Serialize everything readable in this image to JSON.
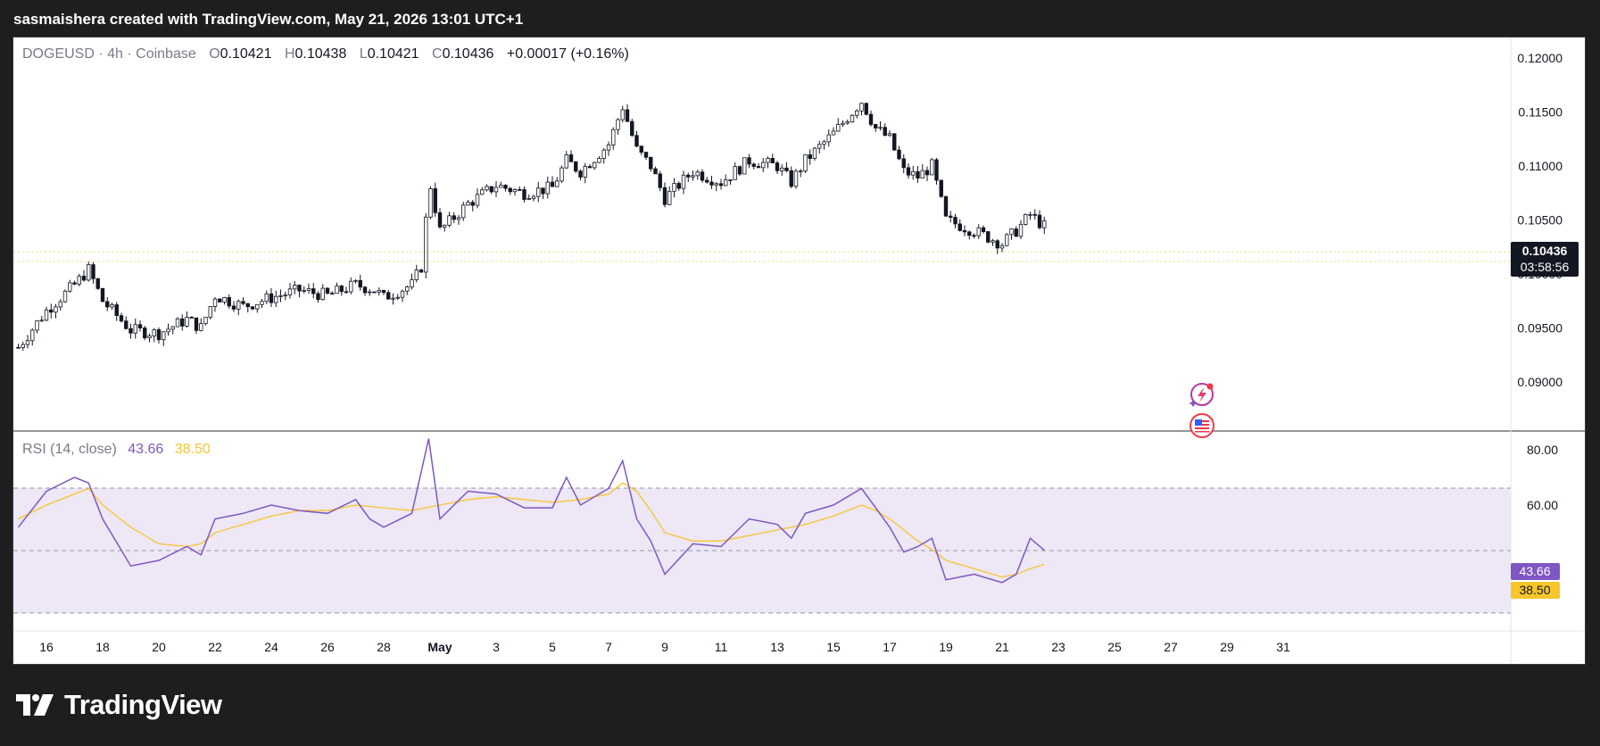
{
  "header": {
    "caption": "sasmaishera created with TradingView.com, May 21, 2026 13:01 UTC+1"
  },
  "legend": {
    "symbol": "DOGEUSD · 4h · Coinbase",
    "o_label": "O",
    "o": "0.10421",
    "h_label": "H",
    "h": "0.10438",
    "l_label": "L",
    "l": "0.10421",
    "c_label": "C",
    "c": "0.10436",
    "change": "+0.00017 (+0.16%)"
  },
  "price_badge": {
    "price": "0.10436",
    "countdown": "03:58:56"
  },
  "rsi_legend": {
    "label": "RSI (14, close)",
    "rsi": "43.66",
    "ma": "38.50"
  },
  "rsi_badges": {
    "rsi": "43.66",
    "ma": "38.50"
  },
  "footer": {
    "brand": "TradingView"
  },
  "colors": {
    "candle": "#131722",
    "rsi_line": "#7e57c2",
    "rsi_ma": "#f7c62d",
    "rsi_band": "#ede7f6",
    "price_line": "#f0d96a",
    "background": "#ffffff",
    "frame": "#1e1e1e"
  },
  "icons": [
    "lightning-event-icon",
    "us-flag-event-icon",
    "tradingview-logo-icon"
  ],
  "chart_data": [
    {
      "type": "candlestick",
      "symbol": "DOGEUSD",
      "interval": "4h",
      "exchange": "Coinbase",
      "y_ticks": [
        "0.12000",
        "0.11500",
        "0.11000",
        "0.10500",
        "0.10000",
        "0.09500",
        "0.09000"
      ],
      "ylim": [
        0.09,
        0.12
      ],
      "x_ticks": [
        "16",
        "18",
        "20",
        "22",
        "24",
        "26",
        "28",
        "May",
        "3",
        "5",
        "7",
        "9",
        "11",
        "13",
        "15",
        "17",
        "19",
        "21",
        "23",
        "25",
        "27",
        "29",
        "31"
      ],
      "last_price": 0.10436,
      "close_path": [
        [
          "Apr 15",
          0.0932
        ],
        [
          "Apr 16",
          0.0966
        ],
        [
          "Apr 17",
          0.099
        ],
        [
          "Apr 17.5",
          0.1004
        ],
        [
          "Apr 18",
          0.0975
        ],
        [
          "Apr 19",
          0.0948
        ],
        [
          "Apr 20",
          0.0945
        ],
        [
          "Apr 21",
          0.0958
        ],
        [
          "Apr 21.5",
          0.095
        ],
        [
          "Apr 22",
          0.098
        ],
        [
          "Apr 23",
          0.097
        ],
        [
          "Apr 24",
          0.0978
        ],
        [
          "Apr 25",
          0.0985
        ],
        [
          "Apr 26",
          0.098
        ],
        [
          "Apr 27",
          0.099
        ],
        [
          "Apr 27.7",
          0.0985
        ],
        [
          "Apr 28",
          0.0978
        ],
        [
          "Apr 29",
          0.099
        ],
        [
          "Apr 29.4",
          0.101
        ],
        [
          "Apr 29.6",
          0.109
        ],
        [
          "Apr 30",
          0.104
        ],
        [
          "May 1",
          0.1065
        ],
        [
          "May 2",
          0.1082
        ],
        [
          "May 3",
          0.1075
        ],
        [
          "May 4",
          0.108
        ],
        [
          "May 4.5",
          0.1105
        ],
        [
          "May 5",
          0.1095
        ],
        [
          "May 6",
          0.112
        ],
        [
          "May 6.5",
          0.1155
        ],
        [
          "May 7",
          0.1115
        ],
        [
          "May 7.5",
          0.11
        ],
        [
          "May 8",
          0.107
        ],
        [
          "May 9",
          0.1095
        ],
        [
          "May 10",
          0.1085
        ],
        [
          "May 11",
          0.1105
        ],
        [
          "May 12",
          0.11
        ],
        [
          "May 12.5",
          0.1085
        ],
        [
          "May 13",
          0.1105
        ],
        [
          "May 14",
          0.113
        ],
        [
          "May 15",
          0.116
        ],
        [
          "May 15.5",
          0.1135
        ],
        [
          "May 16",
          0.1125
        ],
        [
          "May 16.5",
          0.1095
        ],
        [
          "May 17",
          0.109
        ],
        [
          "May 17.5",
          0.11
        ],
        [
          "May 18",
          0.105
        ],
        [
          "May 19",
          0.104
        ],
        [
          "May 20",
          0.1028
        ],
        [
          "May 20.5",
          0.104
        ],
        [
          "May 21",
          0.1055
        ],
        [
          "May 21.5",
          0.1044
        ]
      ]
    },
    {
      "type": "line",
      "title": "RSI (14, close)",
      "y_ticks": [
        "80.00",
        "60.00"
      ],
      "levels": [
        70,
        50,
        30
      ],
      "series": [
        {
          "name": "RSI",
          "last": 43.66,
          "points": [
            [
              "Apr 15",
              52
            ],
            [
              "Apr 16",
              65
            ],
            [
              "Apr 17",
              70
            ],
            [
              "Apr 17.5",
              68
            ],
            [
              "Apr 18",
              55
            ],
            [
              "Apr 19",
              38
            ],
            [
              "Apr 20",
              40
            ],
            [
              "Apr 21",
              45
            ],
            [
              "Apr 21.5",
              42
            ],
            [
              "Apr 22",
              55
            ],
            [
              "Apr 23",
              57
            ],
            [
              "Apr 24",
              60
            ],
            [
              "Apr 25",
              58
            ],
            [
              "Apr 26",
              57
            ],
            [
              "Apr 27",
              62
            ],
            [
              "Apr 27.5",
              55
            ],
            [
              "Apr 28",
              52
            ],
            [
              "Apr 29",
              57
            ],
            [
              "Apr 29.6",
              84
            ],
            [
              "Apr 30",
              55
            ],
            [
              "May 1",
              65
            ],
            [
              "May 2",
              64
            ],
            [
              "May 3",
              59
            ],
            [
              "May 4",
              59
            ],
            [
              "May 4.5",
              70
            ],
            [
              "May 5",
              60
            ],
            [
              "May 6",
              66
            ],
            [
              "May 6.5",
              76
            ],
            [
              "May 7",
              55
            ],
            [
              "May 7.5",
              47
            ],
            [
              "May 8",
              35
            ],
            [
              "May 9",
              46
            ],
            [
              "May 10",
              45
            ],
            [
              "May 11",
              55
            ],
            [
              "May 12",
              53
            ],
            [
              "May 12.5",
              48
            ],
            [
              "May 13",
              57
            ],
            [
              "May 14",
              60
            ],
            [
              "May 15",
              66
            ],
            [
              "May 15.5",
              59
            ],
            [
              "May 16",
              52
            ],
            [
              "May 16.5",
              43
            ],
            [
              "May 17",
              45
            ],
            [
              "May 17.5",
              48
            ],
            [
              "May 18",
              33
            ],
            [
              "May 19",
              35
            ],
            [
              "May 20",
              32
            ],
            [
              "May 20.5",
              35
            ],
            [
              "May 21",
              48
            ],
            [
              "May 21.5",
              43.66
            ]
          ]
        },
        {
          "name": "RSI-based MA",
          "last": 38.5,
          "points": [
            [
              "Apr 15",
              55
            ],
            [
              "Apr 16",
              60
            ],
            [
              "Apr 17",
              64
            ],
            [
              "Apr 17.5",
              66
            ],
            [
              "Apr 18",
              60
            ],
            [
              "Apr 19",
              52
            ],
            [
              "Apr 20",
              46
            ],
            [
              "Apr 21",
              45
            ],
            [
              "Apr 21.5",
              46
            ],
            [
              "Apr 22",
              50
            ],
            [
              "Apr 23",
              53
            ],
            [
              "Apr 24",
              56
            ],
            [
              "Apr 25",
              58
            ],
            [
              "Apr 26",
              58
            ],
            [
              "Apr 27",
              60
            ],
            [
              "Apr 28",
              59
            ],
            [
              "Apr 29",
              58
            ],
            [
              "Apr 30",
              60
            ],
            [
              "May 1",
              62
            ],
            [
              "May 2",
              63
            ],
            [
              "May 3",
              62
            ],
            [
              "May 4",
              61
            ],
            [
              "May 5",
              62
            ],
            [
              "May 6",
              64
            ],
            [
              "May 6.5",
              68
            ],
            [
              "May 7",
              65
            ],
            [
              "May 7.5",
              58
            ],
            [
              "May 8",
              50
            ],
            [
              "May 9",
              47
            ],
            [
              "May 10",
              47
            ],
            [
              "May 11",
              49
            ],
            [
              "May 12",
              51
            ],
            [
              "May 13",
              53
            ],
            [
              "May 14",
              56
            ],
            [
              "May 15",
              60
            ],
            [
              "May 15.5",
              58
            ],
            [
              "May 16",
              55
            ],
            [
              "May 16.5",
              51
            ],
            [
              "May 17",
              47
            ],
            [
              "May 17.5",
              44
            ],
            [
              "May 18",
              40
            ],
            [
              "May 19",
              37
            ],
            [
              "May 20",
              34
            ],
            [
              "May 20.5",
              35
            ],
            [
              "May 21",
              37
            ],
            [
              "May 21.5",
              38.5
            ]
          ]
        }
      ]
    }
  ]
}
